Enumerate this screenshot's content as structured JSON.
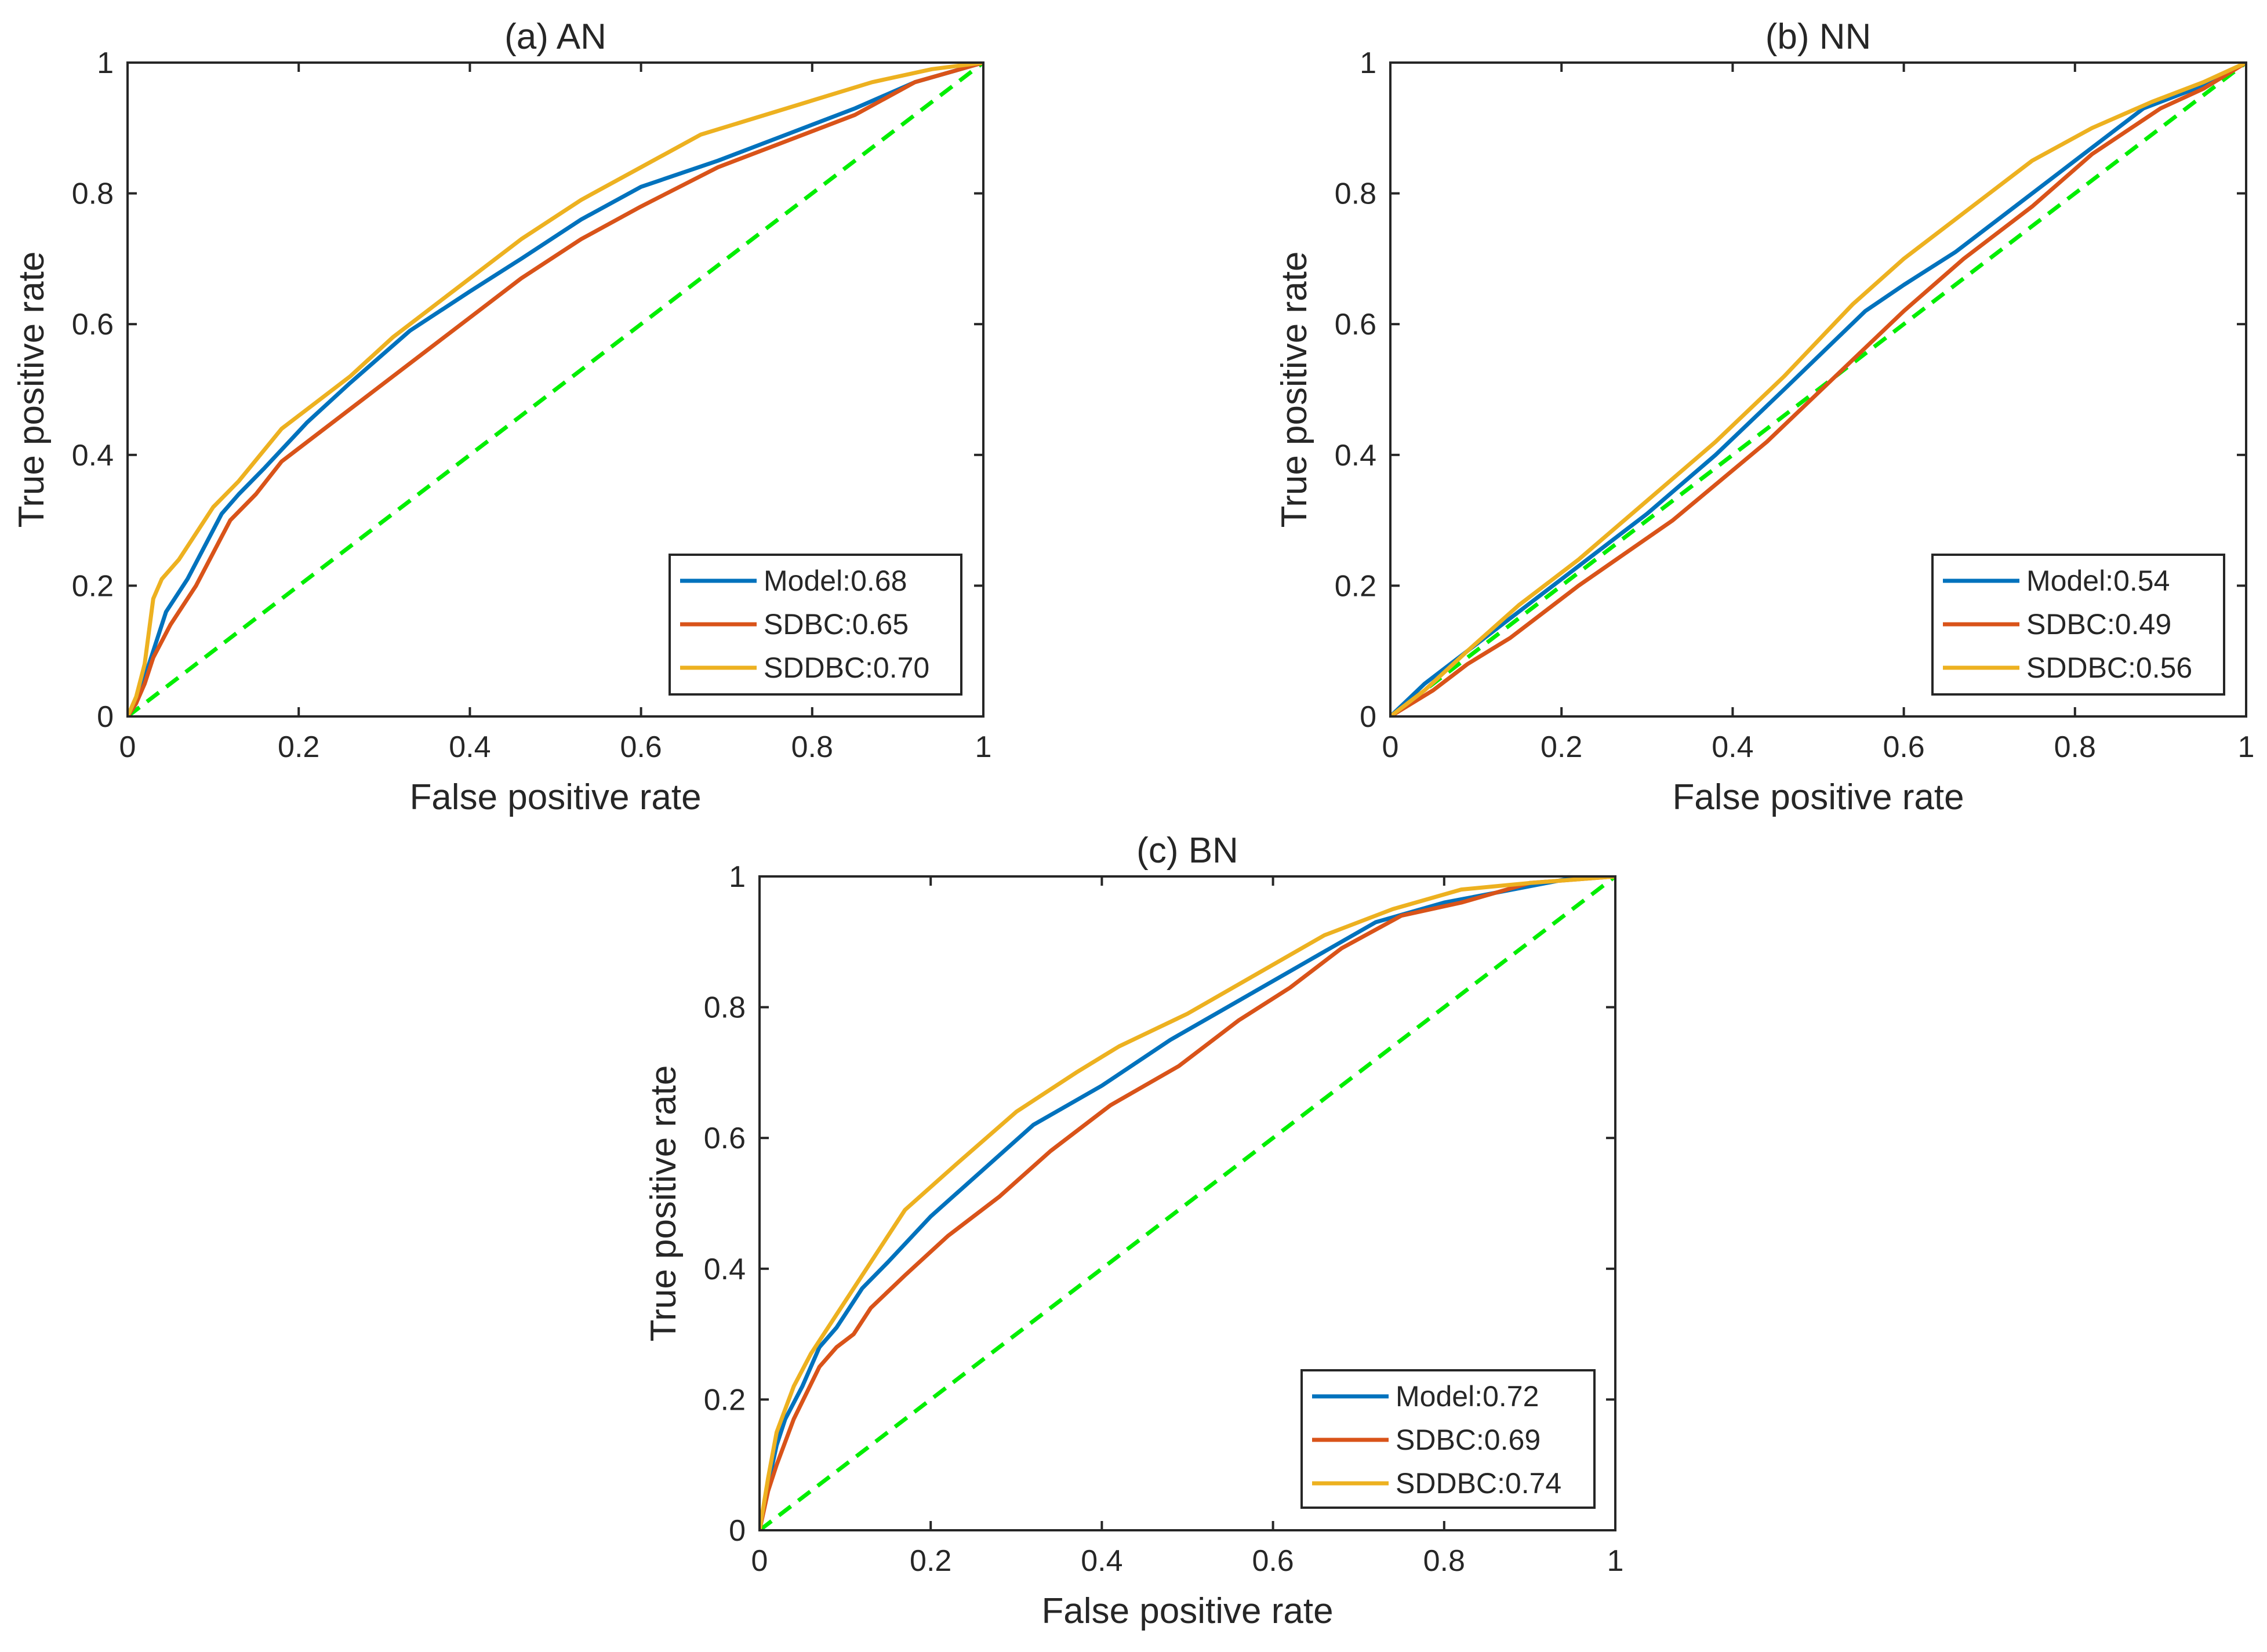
{
  "chart_data": [
    {
      "type": "line",
      "title": "(a) AN",
      "xlabel": "False positive rate",
      "ylabel": "True positive rate",
      "xlim": [
        0,
        1
      ],
      "ylim": [
        0,
        1
      ],
      "xticks": [
        "0",
        "0.2",
        "0.4",
        "0.6",
        "0.8",
        "1"
      ],
      "yticks": [
        "0",
        "0.2",
        "0.4",
        "0.6",
        "0.8",
        "1"
      ],
      "legend_position": "bottom-right",
      "series": [
        {
          "name": "Model:0.68",
          "color": "#0072BD",
          "points": [
            [
              0,
              0
            ],
            [
              0.01,
              0.02
            ],
            [
              0.02,
              0.06
            ],
            [
              0.03,
              0.1
            ],
            [
              0.045,
              0.16
            ],
            [
              0.07,
              0.21
            ],
            [
              0.09,
              0.26
            ],
            [
              0.11,
              0.31
            ],
            [
              0.13,
              0.34
            ],
            [
              0.16,
              0.38
            ],
            [
              0.21,
              0.45
            ],
            [
              0.26,
              0.51
            ],
            [
              0.33,
              0.59
            ],
            [
              0.4,
              0.65
            ],
            [
              0.46,
              0.7
            ],
            [
              0.53,
              0.76
            ],
            [
              0.6,
              0.81
            ],
            [
              0.69,
              0.85
            ],
            [
              0.77,
              0.89
            ],
            [
              0.85,
              0.93
            ],
            [
              0.92,
              0.97
            ],
            [
              1,
              1
            ]
          ]
        },
        {
          "name": "SDBC:0.65",
          "color": "#D95319",
          "points": [
            [
              0,
              0
            ],
            [
              0.01,
              0.02
            ],
            [
              0.02,
              0.05
            ],
            [
              0.03,
              0.09
            ],
            [
              0.05,
              0.14
            ],
            [
              0.08,
              0.2
            ],
            [
              0.1,
              0.25
            ],
            [
              0.12,
              0.3
            ],
            [
              0.15,
              0.34
            ],
            [
              0.18,
              0.39
            ],
            [
              0.23,
              0.44
            ],
            [
              0.29,
              0.5
            ],
            [
              0.35,
              0.56
            ],
            [
              0.41,
              0.62
            ],
            [
              0.46,
              0.67
            ],
            [
              0.53,
              0.73
            ],
            [
              0.6,
              0.78
            ],
            [
              0.69,
              0.84
            ],
            [
              0.77,
              0.88
            ],
            [
              0.85,
              0.92
            ],
            [
              0.92,
              0.97
            ],
            [
              1,
              1
            ]
          ]
        },
        {
          "name": "SDDBC:0.70",
          "color": "#EDB120",
          "points": [
            [
              0,
              0
            ],
            [
              0.01,
              0.03
            ],
            [
              0.02,
              0.08
            ],
            [
              0.03,
              0.18
            ],
            [
              0.04,
              0.21
            ],
            [
              0.06,
              0.24
            ],
            [
              0.08,
              0.28
            ],
            [
              0.1,
              0.32
            ],
            [
              0.13,
              0.36
            ],
            [
              0.18,
              0.44
            ],
            [
              0.22,
              0.48
            ],
            [
              0.26,
              0.52
            ],
            [
              0.31,
              0.58
            ],
            [
              0.38,
              0.65
            ],
            [
              0.46,
              0.73
            ],
            [
              0.53,
              0.79
            ],
            [
              0.6,
              0.84
            ],
            [
              0.67,
              0.89
            ],
            [
              0.77,
              0.93
            ],
            [
              0.87,
              0.97
            ],
            [
              0.94,
              0.99
            ],
            [
              1,
              1
            ]
          ]
        },
        {
          "name": "chance",
          "color": "#00EE00",
          "dashed": true,
          "points": [
            [
              0,
              0
            ],
            [
              1,
              1
            ]
          ]
        }
      ]
    },
    {
      "type": "line",
      "title": "(b) NN",
      "xlabel": "False positive rate",
      "ylabel": "True positive rate",
      "xlim": [
        0,
        1
      ],
      "ylim": [
        0,
        1
      ],
      "xticks": [
        "0",
        "0.2",
        "0.4",
        "0.6",
        "0.8",
        "1"
      ],
      "yticks": [
        "0",
        "0.2",
        "0.4",
        "0.6",
        "0.8",
        "1"
      ],
      "legend_position": "bottom-right",
      "series": [
        {
          "name": "Model:0.54",
          "color": "#0072BD",
          "points": [
            [
              0,
              0
            ],
            [
              0.04,
              0.05
            ],
            [
              0.09,
              0.1
            ],
            [
              0.15,
              0.16
            ],
            [
              0.22,
              0.23
            ],
            [
              0.3,
              0.31
            ],
            [
              0.38,
              0.4
            ],
            [
              0.46,
              0.5
            ],
            [
              0.555,
              0.62
            ],
            [
              0.6,
              0.66
            ],
            [
              0.66,
              0.71
            ],
            [
              0.73,
              0.78
            ],
            [
              0.8,
              0.85
            ],
            [
              0.88,
              0.93
            ],
            [
              0.94,
              0.96
            ],
            [
              1,
              1
            ]
          ]
        },
        {
          "name": "SDBC:0.49",
          "color": "#D95319",
          "points": [
            [
              0,
              0
            ],
            [
              0.05,
              0.04
            ],
            [
              0.09,
              0.08
            ],
            [
              0.14,
              0.12
            ],
            [
              0.22,
              0.2
            ],
            [
              0.33,
              0.3
            ],
            [
              0.44,
              0.42
            ],
            [
              0.52,
              0.52
            ],
            [
              0.6,
              0.62
            ],
            [
              0.67,
              0.7
            ],
            [
              0.75,
              0.78
            ],
            [
              0.82,
              0.86
            ],
            [
              0.9,
              0.93
            ],
            [
              0.95,
              0.96
            ],
            [
              1,
              1
            ]
          ]
        },
        {
          "name": "SDDBC:0.56",
          "color": "#EDB120",
          "points": [
            [
              0,
              0
            ],
            [
              0.04,
              0.04
            ],
            [
              0.09,
              0.1
            ],
            [
              0.15,
              0.17
            ],
            [
              0.22,
              0.24
            ],
            [
              0.3,
              0.33
            ],
            [
              0.38,
              0.42
            ],
            [
              0.46,
              0.52
            ],
            [
              0.54,
              0.63
            ],
            [
              0.6,
              0.7
            ],
            [
              0.67,
              0.77
            ],
            [
              0.75,
              0.85
            ],
            [
              0.82,
              0.9
            ],
            [
              0.89,
              0.94
            ],
            [
              0.95,
              0.97
            ],
            [
              1,
              1
            ]
          ]
        },
        {
          "name": "chance",
          "color": "#00EE00",
          "dashed": true,
          "points": [
            [
              0,
              0
            ],
            [
              1,
              1
            ]
          ]
        }
      ]
    },
    {
      "type": "line",
      "title": "(c) BN",
      "xlabel": "False positive rate",
      "ylabel": "True positive rate",
      "xlim": [
        0,
        1
      ],
      "ylim": [
        0,
        1
      ],
      "xticks": [
        "0",
        "0.2",
        "0.4",
        "0.6",
        "0.8",
        "1"
      ],
      "yticks": [
        "0",
        "0.2",
        "0.4",
        "0.6",
        "0.8",
        "1"
      ],
      "legend_position": "bottom-right",
      "series": [
        {
          "name": "Model:0.72",
          "color": "#0072BD",
          "points": [
            [
              0,
              0
            ],
            [
              0.01,
              0.07
            ],
            [
              0.02,
              0.13
            ],
            [
              0.03,
              0.17
            ],
            [
              0.05,
              0.22
            ],
            [
              0.07,
              0.28
            ],
            [
              0.09,
              0.31
            ],
            [
              0.1,
              0.33
            ],
            [
              0.12,
              0.37
            ],
            [
              0.15,
              0.41
            ],
            [
              0.2,
              0.48
            ],
            [
              0.26,
              0.55
            ],
            [
              0.32,
              0.62
            ],
            [
              0.4,
              0.68
            ],
            [
              0.48,
              0.75
            ],
            [
              0.56,
              0.81
            ],
            [
              0.64,
              0.87
            ],
            [
              0.72,
              0.93
            ],
            [
              0.8,
              0.96
            ],
            [
              0.88,
              0.98
            ],
            [
              0.94,
              0.995
            ],
            [
              1,
              1
            ]
          ]
        },
        {
          "name": "SDBC:0.69",
          "color": "#D95319",
          "points": [
            [
              0,
              0
            ],
            [
              0.01,
              0.06
            ],
            [
              0.02,
              0.1
            ],
            [
              0.04,
              0.17
            ],
            [
              0.07,
              0.25
            ],
            [
              0.09,
              0.28
            ],
            [
              0.11,
              0.3
            ],
            [
              0.13,
              0.34
            ],
            [
              0.17,
              0.39
            ],
            [
              0.22,
              0.45
            ],
            [
              0.28,
              0.51
            ],
            [
              0.34,
              0.58
            ],
            [
              0.41,
              0.65
            ],
            [
              0.49,
              0.71
            ],
            [
              0.56,
              0.78
            ],
            [
              0.62,
              0.83
            ],
            [
              0.68,
              0.89
            ],
            [
              0.75,
              0.94
            ],
            [
              0.82,
              0.96
            ],
            [
              0.9,
              0.99
            ],
            [
              1,
              1
            ]
          ]
        },
        {
          "name": "SDDBC:0.74",
          "color": "#EDB120",
          "points": [
            [
              0,
              0
            ],
            [
              0.01,
              0.08
            ],
            [
              0.02,
              0.15
            ],
            [
              0.04,
              0.22
            ],
            [
              0.06,
              0.27
            ],
            [
              0.08,
              0.31
            ],
            [
              0.1,
              0.35
            ],
            [
              0.14,
              0.43
            ],
            [
              0.17,
              0.49
            ],
            [
              0.23,
              0.56
            ],
            [
              0.3,
              0.64
            ],
            [
              0.37,
              0.7
            ],
            [
              0.42,
              0.74
            ],
            [
              0.5,
              0.79
            ],
            [
              0.58,
              0.85
            ],
            [
              0.66,
              0.91
            ],
            [
              0.74,
              0.95
            ],
            [
              0.82,
              0.98
            ],
            [
              0.9,
              0.99
            ],
            [
              1,
              1
            ]
          ]
        },
        {
          "name": "chance",
          "color": "#00EE00",
          "dashed": true,
          "points": [
            [
              0,
              0
            ],
            [
              1,
              1
            ]
          ]
        }
      ]
    }
  ]
}
